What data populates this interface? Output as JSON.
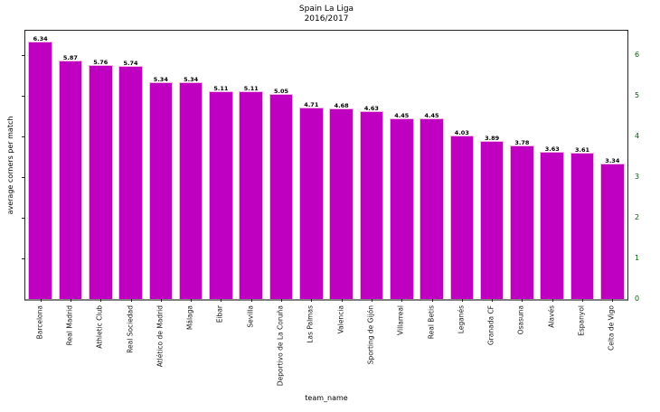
{
  "title": {
    "line1": "Spain La Liga",
    "line2": "2016/2017"
  },
  "chart_data": {
    "type": "bar",
    "title": "Spain La Liga",
    "subtitle": "2016/2017",
    "xlabel": "team_name",
    "ylabel": "average corners per match",
    "categories": [
      "Barcelona",
      "Real Madrid",
      "Athletic Club",
      "Real Sociedad",
      "Atlético de Madrid",
      "Málaga",
      "Eibar",
      "Sevilla",
      "Deportivo de La Coruña",
      "Las Palmas",
      "Valencia",
      "Sporting de Gijón",
      "Villarreal",
      "Real Betis",
      "Leganés",
      "Granada CF",
      "Osasuna",
      "Alavés",
      "Espanyol",
      "Celta de Vigo"
    ],
    "values": [
      6.34,
      5.87,
      5.76,
      5.74,
      5.34,
      5.34,
      5.11,
      5.11,
      5.05,
      4.71,
      4.68,
      4.63,
      4.45,
      4.45,
      4.03,
      3.89,
      3.78,
      3.63,
      3.61,
      3.34
    ],
    "value_labels": [
      "6.34",
      "5.87",
      "5.76",
      "5.74",
      "5.34",
      "5.34",
      "5.11",
      "5.11",
      "5.05",
      "4.71",
      "4.68",
      "4.63",
      "4.45",
      "4.45",
      "4.03",
      "3.89",
      "3.78",
      "3.63",
      "3.61",
      "3.34"
    ],
    "ylim": [
      0,
      6.6
    ],
    "yticks_right": [
      0,
      1,
      2,
      3,
      4,
      5,
      6
    ],
    "yticks_left_marks": [
      1,
      2,
      3,
      4,
      5,
      6
    ],
    "legend": "none",
    "grid": false,
    "bar_color": "#c000c0",
    "bar_edge_color": "#f2b4e2",
    "right_tick_label_color": "#006600",
    "frame_color": "#262626",
    "baseline_color": "#808080"
  }
}
